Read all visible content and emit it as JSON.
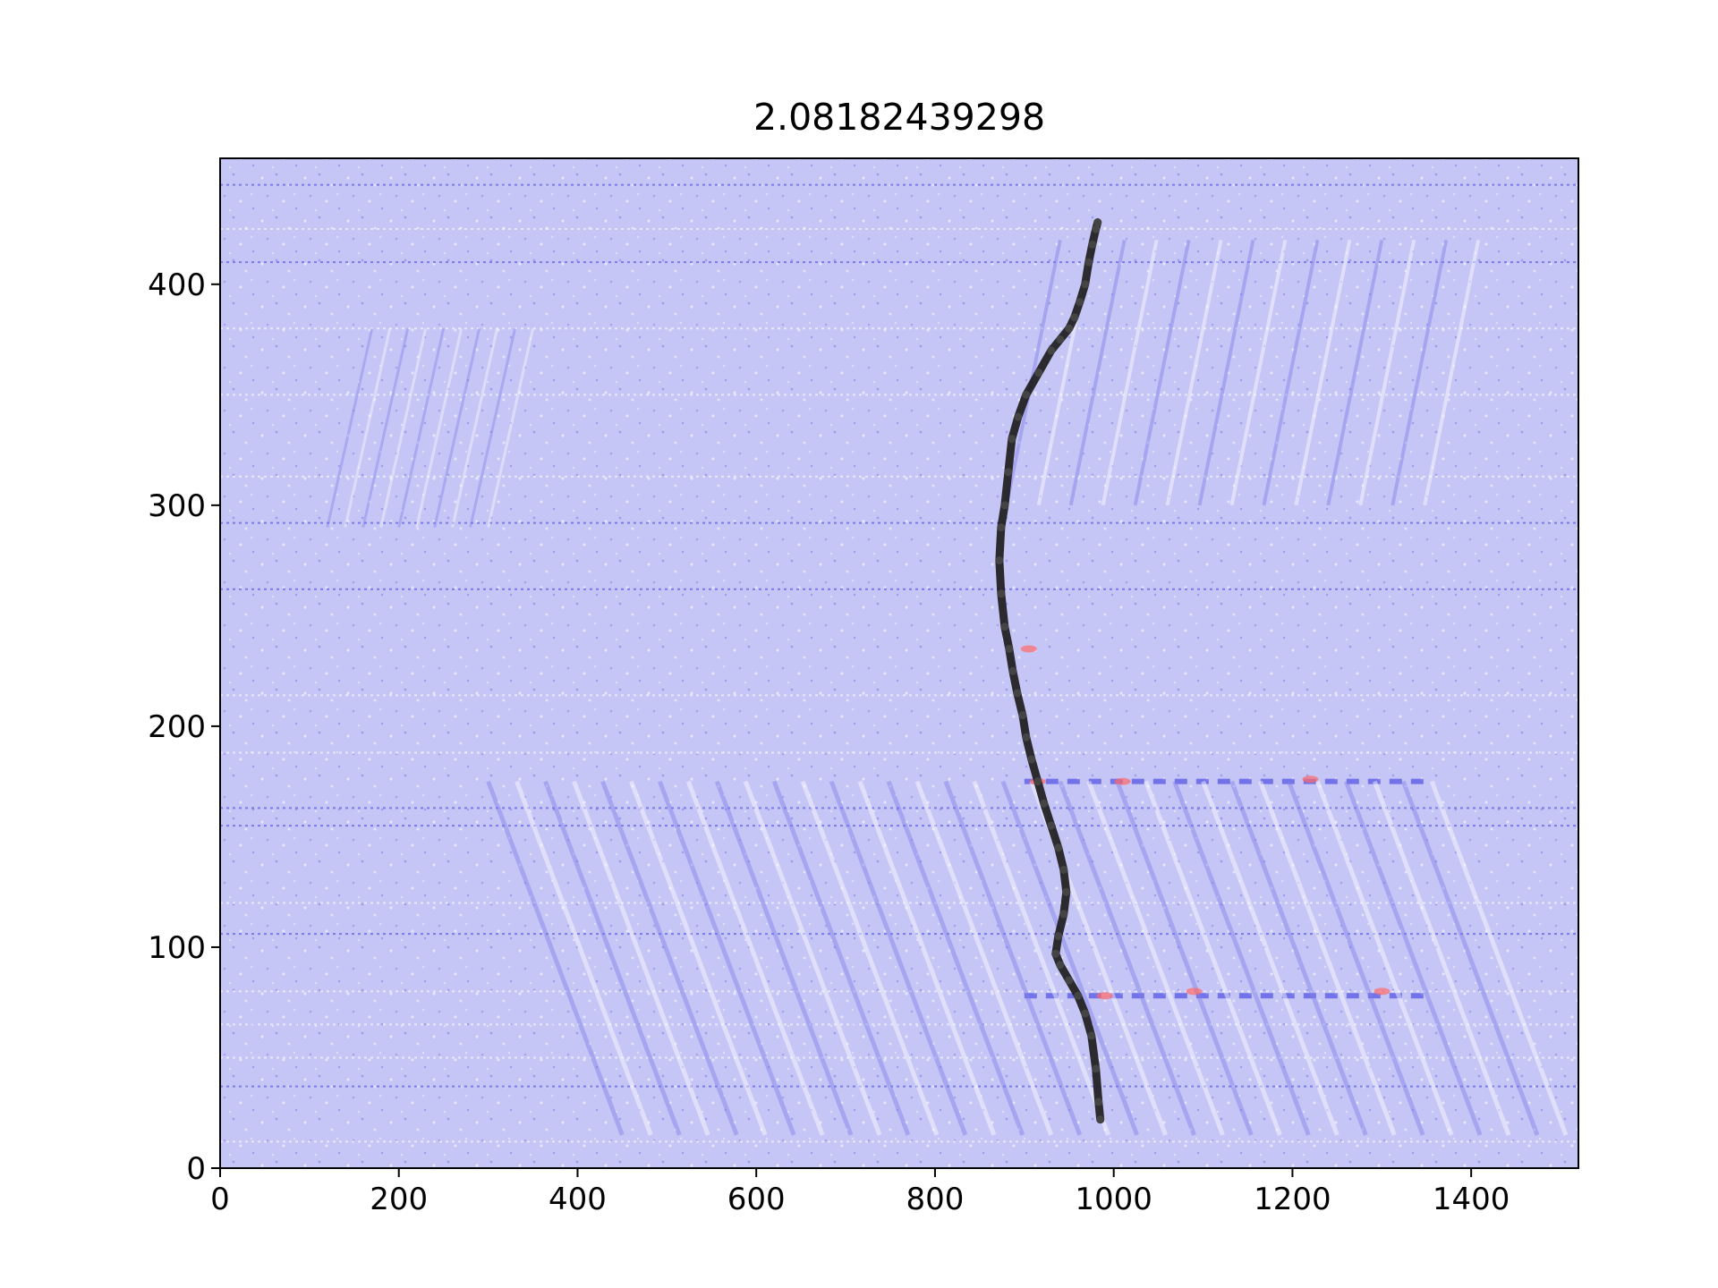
{
  "chart_data": {
    "type": "heatmap",
    "title": "2.08182439298",
    "xlabel": "",
    "ylabel": "",
    "xlim": [
      0,
      1520
    ],
    "ylim": [
      0,
      457
    ],
    "x_ticks": [
      "0",
      "200",
      "400",
      "600",
      "800",
      "1000",
      "1200",
      "1400"
    ],
    "y_ticks": [
      "0",
      "100",
      "200",
      "300",
      "400"
    ],
    "colormap": "bwr",
    "colors": {
      "background": "#c6c6f6",
      "negative": "#2020d8",
      "positive": "#ff5050",
      "trace": "#1a1a1a"
    },
    "grid": false,
    "legend": "none",
    "overlay_line": {
      "name": "",
      "x": [
        985,
        983,
        980,
        975,
        968,
        960,
        950,
        940,
        935,
        938,
        944,
        947,
        944,
        938,
        930,
        922,
        915,
        908,
        902,
        898,
        892,
        887,
        883,
        878,
        874,
        872,
        874,
        878,
        882,
        886,
        893,
        902,
        916,
        930,
        940,
        950,
        956,
        962,
        968,
        972,
        976,
        980,
        982
      ],
      "y": [
        22,
        30,
        45,
        60,
        70,
        78,
        85,
        92,
        97,
        105,
        115,
        125,
        135,
        145,
        155,
        165,
        175,
        185,
        195,
        205,
        215,
        225,
        235,
        245,
        260,
        275,
        290,
        300,
        315,
        330,
        340,
        350,
        360,
        370,
        375,
        380,
        385,
        392,
        400,
        410,
        418,
        425,
        428
      ]
    }
  }
}
